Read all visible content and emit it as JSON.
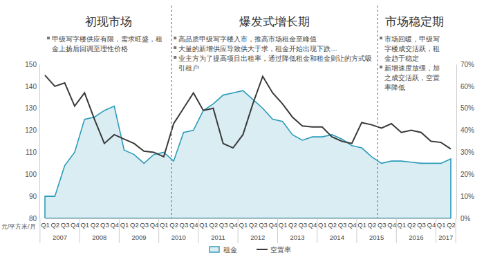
{
  "chart_data": {
    "type": "line",
    "categories": [
      "Q1",
      "Q2",
      "Q3",
      "Q4",
      "Q1",
      "Q2",
      "Q3",
      "Q4",
      "Q1",
      "Q2",
      "Q3",
      "Q4",
      "Q1",
      "Q2",
      "Q3",
      "Q4",
      "Q1",
      "Q2",
      "Q3",
      "Q4",
      "Q1",
      "Q2",
      "Q3",
      "Q4",
      "Q1",
      "Q2",
      "Q3",
      "Q4",
      "Q1",
      "Q2",
      "Q3",
      "Q4",
      "Q1",
      "Q2",
      "Q3",
      "Q4",
      "Q1",
      "Q2",
      "Q3",
      "Q4",
      "Q1",
      "Q2"
    ],
    "x_groups": [
      {
        "label": "2007",
        "count": 4
      },
      {
        "label": "2008",
        "count": 4
      },
      {
        "label": "2009",
        "count": 4
      },
      {
        "label": "2010",
        "count": 4
      },
      {
        "label": "2011",
        "count": 4
      },
      {
        "label": "2012",
        "count": 4
      },
      {
        "label": "2013",
        "count": 4
      },
      {
        "label": "2014",
        "count": 4
      },
      {
        "label": "2015",
        "count": 4
      },
      {
        "label": "2016",
        "count": 4
      },
      {
        "label": "2017",
        "count": 2
      }
    ],
    "series": [
      {
        "name": "租金",
        "type": "area",
        "color": "#2a9bb8",
        "values": [
          90,
          90,
          104,
          110,
          125,
          126,
          129,
          131,
          111,
          109,
          105,
          109,
          110,
          106,
          119,
          120,
          129,
          132,
          136,
          137,
          138,
          134,
          130,
          125,
          124,
          118,
          115.5,
          117,
          117,
          118,
          116,
          113,
          112,
          108,
          105,
          106,
          106,
          105.5,
          105,
          105,
          105,
          107
        ]
      },
      {
        "name": "空置率",
        "type": "line",
        "color": "#3a3a3a",
        "axis": "y2",
        "values": [
          65,
          60,
          61.5,
          51,
          57,
          45,
          34,
          38,
          36,
          34,
          30.5,
          30,
          28,
          43,
          50,
          57,
          49,
          50,
          34,
          32,
          38,
          52,
          64.5,
          57,
          52,
          46,
          42,
          41.5,
          41.5,
          37,
          35,
          34,
          43.5,
          42.5,
          41,
          43,
          39,
          40,
          39,
          35,
          34.5,
          31.5
        ]
      }
    ],
    "ylim": [
      80,
      150
    ],
    "yticks": [
      80,
      90,
      100,
      110,
      120,
      130,
      140,
      150
    ],
    "y_label": "元/平方米/月",
    "y2lim": [
      0,
      70
    ],
    "y2ticks": [
      {
        "value": 0,
        "label": "0%"
      },
      {
        "value": 10,
        "label": "10%"
      },
      {
        "value": 20,
        "label": "20%"
      },
      {
        "value": 30,
        "label": "30%"
      },
      {
        "value": 40,
        "label": "40%"
      },
      {
        "value": 50,
        "label": "50%"
      },
      {
        "value": 60,
        "label": "60%"
      },
      {
        "value": 70,
        "label": "70%"
      }
    ],
    "legend": "bottom",
    "phases": [
      {
        "title": "初现市场",
        "start": 0,
        "bullets": [
          "甲级写字楼供应有限，需求旺盛，租金上扬后回调至理性价格"
        ]
      },
      {
        "title": "爆发式增长期",
        "start": 12.8,
        "bullets": [
          "高品质甲级写字楼入市，推高市场租金至峰值",
          "大量的新增供应导致供大于求，租金开始出现下跌…",
          "业主方为了提高项目出租率，通过降低租金和租金则让的方式吸引租户"
        ]
      },
      {
        "title": "市场稳定期",
        "start": 33.6,
        "bullets": [
          "市场回暖，甲级写字楼成交活跃，租金趋于稳定",
          "新增速度放缓，加之成交活跃，空置率降低"
        ]
      }
    ]
  }
}
